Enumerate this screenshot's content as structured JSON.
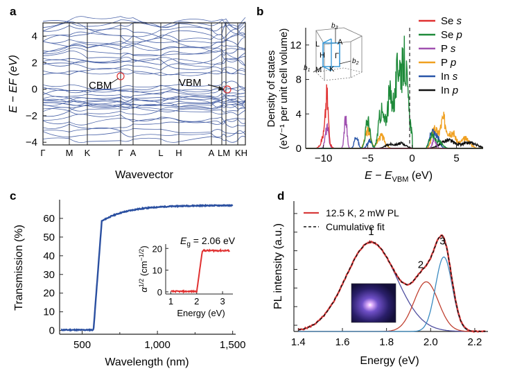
{
  "panel_labels": {
    "a": "a",
    "b": "b",
    "c": "c",
    "d": "d"
  },
  "colors": {
    "band": "#4a63a8",
    "se_s": "#e03030",
    "se_p": "#1e8a3a",
    "p_s": "#a050b0",
    "p_p": "#f0a020",
    "in_s": "#2855a8",
    "in_p": "#111111",
    "transmission": "#2a4fa0",
    "inset_alpha": "#e03030",
    "pl_data": "#d83a3a",
    "fit": "#111111",
    "peak1": "#5050a0",
    "peak2": "#c04030",
    "peak3": "#3a8ac0"
  },
  "chart_data": [
    {
      "id": "a",
      "type": "line",
      "title": "",
      "xlabel": "Wavevector",
      "ylabel": "E − EF (eV)",
      "ylim": [
        -4.2,
        5
      ],
      "yticks": [
        "−4",
        "−2",
        "0",
        "2",
        "4"
      ],
      "k_points": [
        "Γ",
        "M",
        "K",
        "Γ",
        "A",
        "L",
        "H",
        "A",
        "L",
        "M",
        "K",
        "H"
      ],
      "k_labels": [
        "Γ",
        "M",
        "K",
        "Γ",
        "A",
        "L",
        "H",
        "A",
        "LM",
        "KH"
      ],
      "annotations": {
        "cbm": "CBM",
        "vbm": "VBM"
      },
      "vbm_energy": 0.0,
      "cbm_energy": 1.0
    },
    {
      "id": "b",
      "type": "area",
      "xlabel_main": "E − E",
      "xlabel_sub": "VBM",
      "xlabel_unit": " (eV)",
      "ylabel_line1": "Density of states",
      "ylabel_line2": "(eV⁻¹ per unit cell volume)",
      "xlim": [
        -12,
        8
      ],
      "ylim": [
        0,
        14
      ],
      "xticks": [
        -10,
        -5,
        0,
        5
      ],
      "xtick_labels": [
        "−10",
        "−5",
        "0",
        "5"
      ],
      "yticks": [
        0,
        4,
        8,
        12
      ],
      "legend": [
        "Se s",
        "Se p",
        "P s",
        "P p",
        "In s",
        "In p"
      ],
      "bz_labels": [
        "b3",
        "b1",
        "b2",
        "L",
        "A",
        "H",
        "Γ",
        "M",
        "K"
      ],
      "series": [
        {
          "name": "Se s",
          "peaks": [
            [
              -9.6,
              4.8,
              0.15
            ],
            [
              -9.8,
              2.0,
              0.35
            ]
          ]
        },
        {
          "name": "Se p",
          "peaks": [
            [
              -5.0,
              3.5,
              0.25
            ],
            [
              -3.5,
              4.5,
              0.3
            ],
            [
              -2.5,
              6.5,
              0.35
            ],
            [
              -1.5,
              10.5,
              0.35
            ],
            [
              -0.8,
              9.0,
              0.25
            ],
            [
              -0.3,
              3.0,
              0.25
            ],
            [
              2.2,
              1.5,
              0.3
            ],
            [
              3.0,
              0.8,
              0.4
            ]
          ]
        },
        {
          "name": "P s",
          "peaks": [
            [
              -7.5,
              3.9,
              0.15
            ],
            [
              -9.6,
              2.5,
              0.2
            ],
            [
              2.5,
              1.2,
              0.2
            ]
          ]
        },
        {
          "name": "P p",
          "peaks": [
            [
              -5.0,
              2.2,
              0.3
            ],
            [
              -3.5,
              1.5,
              0.4
            ],
            [
              2.5,
              2.5,
              0.3
            ],
            [
              3.5,
              3.5,
              0.35
            ],
            [
              4.5,
              2.0,
              0.4
            ],
            [
              6.0,
              1.2,
              0.5
            ]
          ]
        },
        {
          "name": "In s",
          "peaks": [
            [
              -6.3,
              1.6,
              0.2
            ],
            [
              -4.8,
              1.0,
              0.25
            ],
            [
              2.2,
              2.0,
              0.25
            ],
            [
              2.8,
              1.5,
              0.3
            ]
          ]
        },
        {
          "name": "In p",
          "peaks": [
            [
              -2.5,
              0.5,
              0.5
            ],
            [
              -1.2,
              0.6,
              0.5
            ],
            [
              4.0,
              1.0,
              0.8
            ],
            [
              6.5,
              0.7,
              0.8
            ]
          ]
        }
      ]
    },
    {
      "id": "c",
      "type": "line",
      "xlabel": "Wavelength (nm)",
      "ylabel": "Transmission (%)",
      "xlim": [
        350,
        1520
      ],
      "ylim": [
        -2,
        70
      ],
      "xticks": [
        500,
        1000,
        1500
      ],
      "xtick_labels": [
        "500",
        "1,000",
        "1,500"
      ],
      "xticks_minor": [
        750,
        1250
      ],
      "yticks": [
        0,
        10,
        20,
        30,
        40,
        50,
        60
      ],
      "edge_nm": 600,
      "plateau_percent": 67,
      "inset": {
        "type": "line",
        "annotation": "Eg = 2.06 eV",
        "annotation_main": "E",
        "annotation_sub": "g",
        "annotation_value": " = 2.06 eV",
        "xlabel": "Energy (eV)",
        "ylabel": "α1/2 (cm−1/2)",
        "xlim": [
          0.8,
          3.4
        ],
        "ylim": [
          -1,
          22
        ],
        "xticks": [
          1,
          2,
          3
        ],
        "yticks": [
          0,
          10,
          20
        ],
        "gap_ev": 2.06,
        "plateau": 19
      }
    },
    {
      "id": "d",
      "type": "line",
      "xlabel": "Energy (eV)",
      "ylabel": "PL intensity (a.u.)",
      "xlim": [
        1.38,
        2.26
      ],
      "ylim": [
        0,
        1.05
      ],
      "xticks": [
        1.4,
        1.6,
        1.8,
        2.0,
        2.2
      ],
      "xtick_labels": [
        "1.4",
        "1.6",
        "1.8",
        "2.0",
        "2.2"
      ],
      "legend": [
        "12.5 K, 2 mW PL",
        "Cumulative fit"
      ],
      "peaks": [
        {
          "label": "1",
          "center": 1.73,
          "sigma": 0.115,
          "amplitude": 0.72
        },
        {
          "label": "2",
          "center": 1.98,
          "sigma": 0.055,
          "amplitude": 0.4
        },
        {
          "label": "3",
          "center": 2.06,
          "sigma": 0.038,
          "amplitude": 0.6
        }
      ]
    }
  ]
}
